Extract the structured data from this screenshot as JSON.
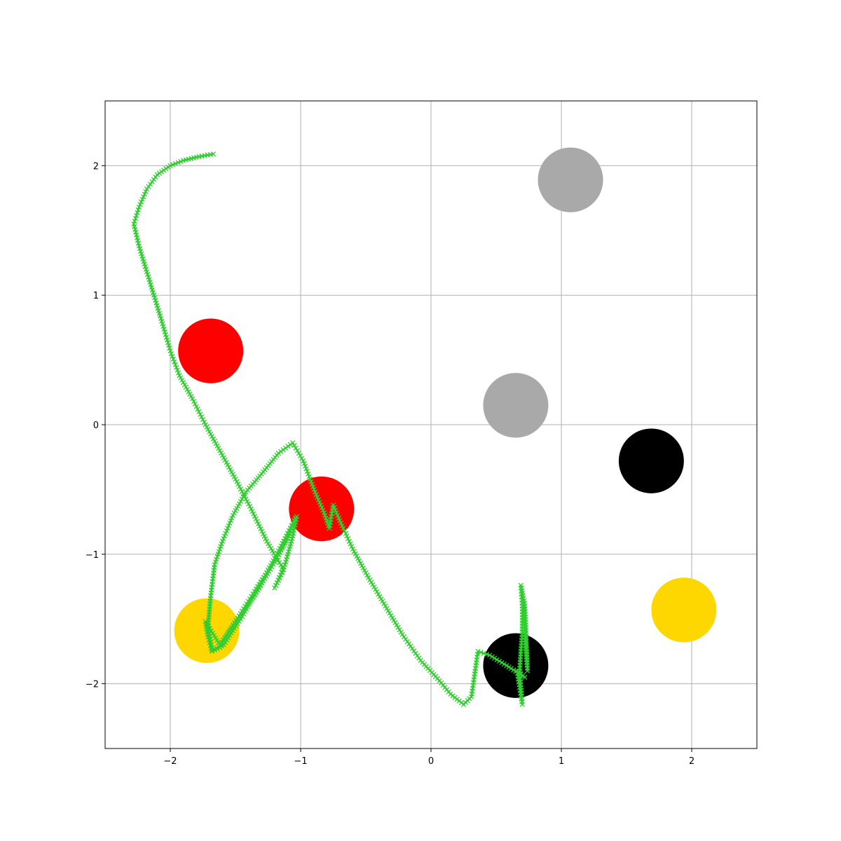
{
  "chart_data": {
    "type": "scatter",
    "title": "",
    "xlabel": "",
    "ylabel": "",
    "xlim": [
      -2.5,
      2.5
    ],
    "ylim": [
      -2.5,
      2.5
    ],
    "grid": true,
    "xticks": [
      -2,
      -1,
      0,
      1,
      2
    ],
    "yticks": [
      -2,
      -1,
      0,
      1,
      2
    ],
    "xtick_labels": [
      "−2",
      "−1",
      "0",
      "1",
      "2"
    ],
    "ytick_labels": [
      "−2",
      "−1",
      "0",
      "1",
      "2"
    ],
    "colors": {
      "red": "#ff0000",
      "gray": "#a9a9a9",
      "black": "#000000",
      "gold": "#ffd700",
      "path": "#32cd32",
      "grid": "#b0b0b0"
    },
    "circles": [
      {
        "x": 1.07,
        "y": 1.89,
        "r": 0.25,
        "color": "gray"
      },
      {
        "x": -1.69,
        "y": 0.57,
        "r": 0.25,
        "color": "red"
      },
      {
        "x": 0.65,
        "y": 0.15,
        "r": 0.25,
        "color": "gray"
      },
      {
        "x": 1.69,
        "y": -0.28,
        "r": 0.25,
        "color": "black"
      },
      {
        "x": -0.84,
        "y": -0.65,
        "r": 0.25,
        "color": "red"
      },
      {
        "x": 1.94,
        "y": -1.43,
        "r": 0.25,
        "color": "gold"
      },
      {
        "x": -1.72,
        "y": -1.59,
        "r": 0.25,
        "color": "gold"
      },
      {
        "x": 0.65,
        "y": -1.86,
        "r": 0.25,
        "color": "black"
      }
    ],
    "trajectory": {
      "marker": "x",
      "color": "path",
      "points": [
        [
          -1.67,
          2.09
        ],
        [
          -1.78,
          2.07
        ],
        [
          -1.9,
          2.04
        ],
        [
          -2.0,
          2.0
        ],
        [
          -2.1,
          1.93
        ],
        [
          -2.18,
          1.82
        ],
        [
          -2.24,
          1.68
        ],
        [
          -2.28,
          1.55
        ],
        [
          -2.24,
          1.38
        ],
        [
          -2.18,
          1.18
        ],
        [
          -2.12,
          0.98
        ],
        [
          -2.06,
          0.78
        ],
        [
          -2.0,
          0.57
        ],
        [
          -1.93,
          0.38
        ],
        [
          -1.83,
          0.2
        ],
        [
          -1.73,
          0.0
        ],
        [
          -1.62,
          -0.2
        ],
        [
          -1.5,
          -0.42
        ],
        [
          -1.38,
          -0.65
        ],
        [
          -1.26,
          -0.9
        ],
        [
          -1.13,
          -1.12
        ],
        [
          -1.2,
          -1.26
        ],
        [
          -1.12,
          -1.08
        ],
        [
          -1.06,
          -0.86
        ],
        [
          -1.03,
          -0.71
        ],
        [
          -1.1,
          -0.86
        ],
        [
          -1.2,
          -1.06
        ],
        [
          -1.33,
          -1.28
        ],
        [
          -1.48,
          -1.5
        ],
        [
          -1.62,
          -1.7
        ],
        [
          -1.73,
          -1.52
        ],
        [
          -1.71,
          -1.64
        ],
        [
          -1.68,
          -1.75
        ],
        [
          -1.62,
          -1.72
        ],
        [
          -1.55,
          -1.6
        ],
        [
          -1.45,
          -1.44
        ],
        [
          -1.33,
          -1.25
        ],
        [
          -1.2,
          -1.06
        ],
        [
          -1.1,
          -0.88
        ],
        [
          -1.04,
          -0.72
        ],
        [
          -1.11,
          -0.86
        ],
        [
          -1.21,
          -1.05
        ],
        [
          -1.33,
          -1.27
        ],
        [
          -1.46,
          -1.5
        ],
        [
          -1.59,
          -1.7
        ],
        [
          -1.68,
          -1.74
        ],
        [
          -1.71,
          -1.55
        ],
        [
          -1.69,
          -1.32
        ],
        [
          -1.66,
          -1.08
        ],
        [
          -1.6,
          -0.9
        ],
        [
          -1.52,
          -0.7
        ],
        [
          -1.42,
          -0.52
        ],
        [
          -1.3,
          -0.38
        ],
        [
          -1.17,
          -0.22
        ],
        [
          -1.06,
          -0.14
        ],
        [
          -0.98,
          -0.28
        ],
        [
          -0.89,
          -0.52
        ],
        [
          -0.82,
          -0.68
        ],
        [
          -0.78,
          -0.8
        ],
        [
          -0.75,
          -0.62
        ],
        [
          -0.7,
          -0.74
        ],
        [
          -0.6,
          -0.96
        ],
        [
          -0.48,
          -1.18
        ],
        [
          -0.35,
          -1.4
        ],
        [
          -0.22,
          -1.62
        ],
        [
          -0.08,
          -1.82
        ],
        [
          0.05,
          -1.96
        ],
        [
          0.15,
          -2.08
        ],
        [
          0.25,
          -2.16
        ],
        [
          0.31,
          -2.1
        ],
        [
          0.36,
          -1.75
        ],
        [
          0.45,
          -1.78
        ],
        [
          0.58,
          -1.86
        ],
        [
          0.72,
          -1.95
        ],
        [
          0.66,
          -1.9
        ],
        [
          0.7,
          -2.16
        ],
        [
          0.68,
          -1.9
        ],
        [
          0.7,
          -1.6
        ],
        [
          0.7,
          -1.4
        ],
        [
          0.69,
          -1.24
        ],
        [
          0.72,
          -1.4
        ],
        [
          0.73,
          -1.65
        ],
        [
          0.74,
          -1.9
        ],
        [
          0.72,
          -1.6
        ],
        [
          0.71,
          -1.36
        ]
      ]
    }
  }
}
